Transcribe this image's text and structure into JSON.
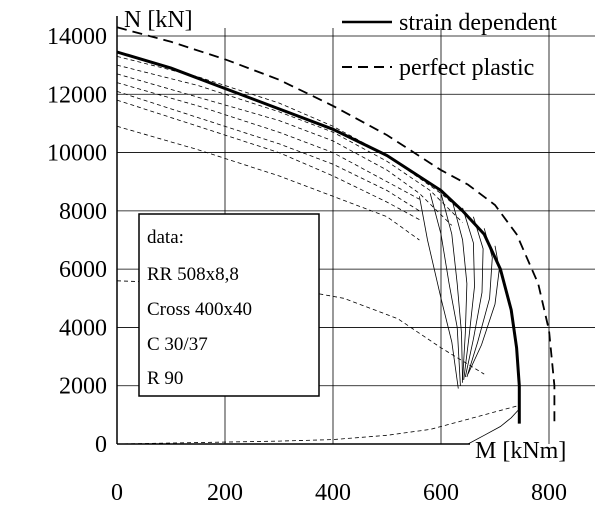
{
  "chart_data": {
    "type": "line",
    "title": "",
    "xlabel": "M [kNm]",
    "ylabel": "N [kN]",
    "xlim": [
      0,
      800
    ],
    "ylim": [
      0,
      14000
    ],
    "x_ticks": [
      "0",
      "200",
      "400",
      "600",
      "800"
    ],
    "y_ticks": [
      "0",
      "2000",
      "4000",
      "6000",
      "8000",
      "10000",
      "12000",
      "14000"
    ],
    "x_tick_values": [
      0,
      200,
      400,
      600,
      800
    ],
    "y_tick_values": [
      0,
      2000,
      4000,
      6000,
      8000,
      10000,
      12000,
      14000
    ],
    "grid": true,
    "legend_position": "top-right",
    "legend": [
      {
        "label": "strain dependent",
        "style": "solid"
      },
      {
        "label": "perfect plastic",
        "style": "dashed"
      }
    ],
    "series": [
      {
        "name": "strain dependent",
        "style": "solid",
        "x": [
          0,
          100,
          200,
          300,
          400,
          500,
          600,
          640,
          680,
          710,
          730,
          740,
          745,
          745
        ],
        "y": [
          13450,
          12900,
          12200,
          11500,
          10800,
          9900,
          8700,
          8000,
          7200,
          6000,
          4600,
          3300,
          2000,
          700
        ]
      },
      {
        "name": "perfect plastic",
        "style": "dashed",
        "x": [
          0,
          100,
          200,
          300,
          400,
          500,
          600,
          650,
          700,
          740,
          780,
          800,
          810,
          810
        ],
        "y": [
          14300,
          13800,
          13200,
          12500,
          11600,
          10600,
          9400,
          8900,
          8200,
          7200,
          5500,
          3900,
          2000,
          600
        ]
      }
    ],
    "secondary_curves": [
      {
        "style": "thin-dashed",
        "x": [
          0,
          150,
          300,
          400,
          500,
          600,
          650
        ],
        "y": [
          13300,
          12600,
          11700,
          10900,
          9900,
          8600,
          7800
        ]
      },
      {
        "style": "thin-dashed",
        "x": [
          0,
          150,
          300,
          400,
          500,
          580,
          640
        ],
        "y": [
          13000,
          12300,
          11400,
          10700,
          9700,
          8700,
          7600
        ]
      },
      {
        "style": "thin-dashed",
        "x": [
          0,
          150,
          300,
          400,
          500,
          560,
          620
        ],
        "y": [
          12700,
          11900,
          11100,
          10400,
          9400,
          8600,
          7500
        ]
      },
      {
        "style": "thin-dashed",
        "x": [
          0,
          150,
          300,
          400,
          500,
          560
        ],
        "y": [
          12400,
          11600,
          10700,
          10000,
          9000,
          8400
        ]
      },
      {
        "style": "thin-dashed",
        "x": [
          0,
          150,
          300,
          400,
          500,
          560
        ],
        "y": [
          12100,
          11200,
          10300,
          9600,
          8700,
          8000
        ]
      },
      {
        "style": "thin-dashed",
        "x": [
          0,
          150,
          300,
          400,
          500,
          560
        ],
        "y": [
          11800,
          10900,
          10000,
          9200,
          8300,
          7700
        ]
      },
      {
        "style": "thin-dashed",
        "x": [
          0,
          150,
          300,
          400,
          500,
          560
        ],
        "y": [
          10900,
          10100,
          9200,
          8500,
          7800,
          7000
        ]
      },
      {
        "style": "thin-dashed",
        "x": [
          0,
          300,
          400,
          500,
          580,
          640,
          700,
          740
        ],
        "y": [
          0,
          100,
          150,
          300,
          500,
          800,
          1100,
          1300
        ]
      },
      {
        "style": "thin-dashed",
        "x": [
          0,
          300,
          420,
          520,
          600,
          680
        ],
        "y": [
          5600,
          5400,
          5000,
          4300,
          3300,
          2400
        ]
      }
    ],
    "secondary_solid_curves": [
      {
        "x": [
          560,
          575,
          600,
          620,
          632
        ],
        "y": [
          8500,
          7000,
          5000,
          3500,
          1900
        ]
      },
      {
        "x": [
          580,
          600,
          615,
          630,
          636
        ],
        "y": [
          8600,
          7200,
          5500,
          4000,
          2000
        ]
      },
      {
        "x": [
          600,
          620,
          630,
          638,
          640
        ],
        "y": [
          8600,
          7200,
          5500,
          3800,
          2100
        ]
      },
      {
        "x": [
          620,
          640,
          648,
          645,
          640
        ],
        "y": [
          8400,
          7000,
          5500,
          3800,
          2200
        ]
      },
      {
        "x": [
          640,
          660,
          662,
          652,
          642
        ],
        "y": [
          8100,
          6900,
          5400,
          3700,
          2200
        ]
      },
      {
        "x": [
          660,
          678,
          676,
          660,
          645
        ],
        "y": [
          7800,
          6700,
          5200,
          3600,
          2300
        ]
      },
      {
        "x": [
          680,
          695,
          690,
          668,
          648
        ],
        "y": [
          7400,
          6400,
          5000,
          3500,
          2300
        ]
      },
      {
        "x": [
          700,
          708,
          700,
          675,
          650
        ],
        "y": [
          6800,
          6000,
          4800,
          3400,
          2400
        ]
      },
      {
        "x": [
          650,
          680,
          710,
          730,
          745
        ],
        "y": [
          0,
          300,
          600,
          900,
          1200
        ]
      }
    ],
    "annotation": {
      "lines": [
        "data:",
        "RR 508x8,8",
        "Cross 400x40",
        "C 30/37",
        "R 90"
      ]
    }
  }
}
